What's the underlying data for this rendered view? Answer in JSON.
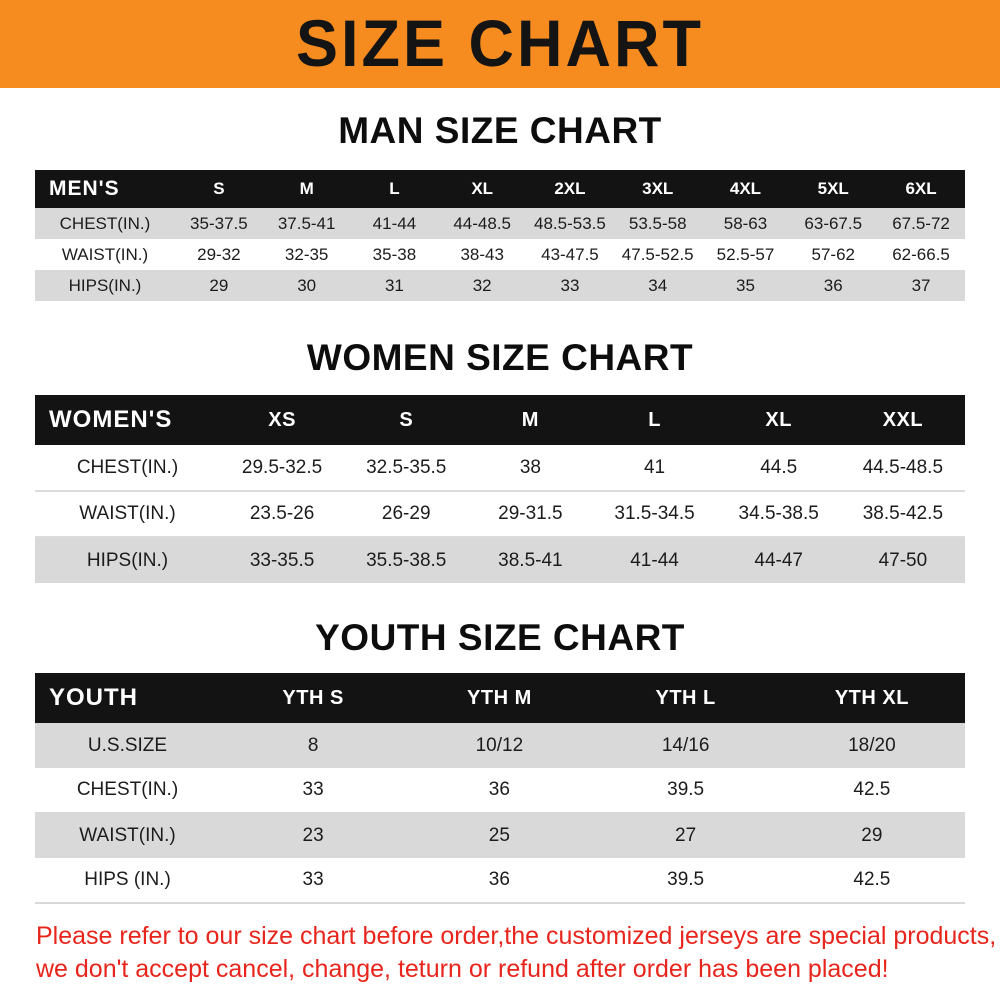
{
  "banner": {
    "title": "SIZE CHART",
    "bg_color": "#f68b1f"
  },
  "sections": [
    {
      "heading": "MAN SIZE CHART",
      "header_label": "MEN'S",
      "columns": [
        "S",
        "M",
        "L",
        "XL",
        "2XL",
        "3XL",
        "4XL",
        "5XL",
        "6XL"
      ],
      "rows": [
        {
          "label": "CHEST(IN.)",
          "values": [
            "35-37.5",
            "37.5-41",
            "41-44",
            "44-48.5",
            "48.5-53.5",
            "53.5-58",
            "58-63",
            "63-67.5",
            "67.5-72"
          ]
        },
        {
          "label": "WAIST(IN.)",
          "values": [
            "29-32",
            "32-35",
            "35-38",
            "38-43",
            "43-47.5",
            "47.5-52.5",
            "52.5-57",
            "57-62",
            "62-66.5"
          ]
        },
        {
          "label": "HIPS(IN.)",
          "values": [
            "29",
            "30",
            "31",
            "32",
            "33",
            "34",
            "35",
            "36",
            "37"
          ]
        }
      ],
      "shaded_rows": [
        true,
        false,
        true
      ]
    },
    {
      "heading": "WOMEN SIZE CHART",
      "header_label": "WOMEN'S",
      "columns": [
        "XS",
        "S",
        "M",
        "L",
        "XL",
        "XXL"
      ],
      "rows": [
        {
          "label": "CHEST(IN.)",
          "values": [
            "29.5-32.5",
            "32.5-35.5",
            "38",
            "41",
            "44.5",
            "44.5-48.5"
          ]
        },
        {
          "label": "WAIST(IN.)",
          "values": [
            "23.5-26",
            "26-29",
            "29-31.5",
            "31.5-34.5",
            "34.5-38.5",
            "38.5-42.5"
          ]
        },
        {
          "label": "HIPS(IN.)",
          "values": [
            "33-35.5",
            "35.5-38.5",
            "38.5-41",
            "41-44",
            "44-47",
            "47-50"
          ]
        }
      ],
      "shaded_rows": [
        false,
        false,
        true
      ]
    },
    {
      "heading": "YOUTH SIZE CHART",
      "header_label": "YOUTH",
      "columns": [
        "YTH S",
        "YTH M",
        "YTH L",
        "YTH XL"
      ],
      "rows": [
        {
          "label": "U.S.SIZE",
          "values": [
            "8",
            "10/12",
            "14/16",
            "18/20"
          ]
        },
        {
          "label": "CHEST(IN.)",
          "values": [
            "33",
            "36",
            "39.5",
            "42.5"
          ]
        },
        {
          "label": "WAIST(IN.)",
          "values": [
            "23",
            "25",
            "27",
            "29"
          ]
        },
        {
          "label": "HIPS (IN.)",
          "values": [
            "33",
            "36",
            "39.5",
            "42.5"
          ]
        }
      ],
      "shaded_rows": [
        true,
        false,
        true,
        false
      ]
    }
  ],
  "footer": {
    "line1": "Please refer to our size chart before order,the customized jerseys are special products,",
    "line2": "we don't accept cancel, change, teturn or refund after order has been placed!",
    "text_color": "#e8251c"
  },
  "colors": {
    "banner_bg": "#f68b1f",
    "table_header_bg": "#131313",
    "row_shade": "#d9d9d9"
  }
}
